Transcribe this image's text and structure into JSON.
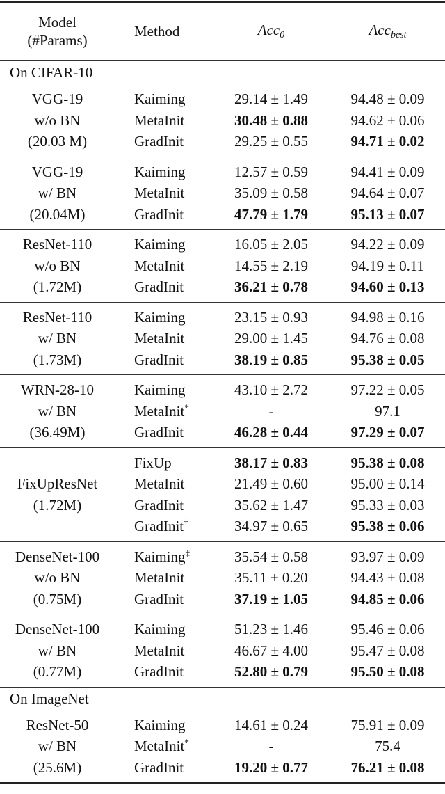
{
  "header": {
    "model_line1": "Model",
    "model_line2": "(#Params)",
    "method": "Method",
    "acc0_base": "Acc",
    "acc0_sub": "0",
    "accbest_base": "Acc",
    "accbest_sub": "best"
  },
  "sections": [
    {
      "title": "On CIFAR-10",
      "groups": [
        {
          "model": [
            "VGG-19",
            "w/o BN",
            "(20.03 M)"
          ],
          "rows": [
            {
              "method": "Kaiming",
              "sup": "",
              "acc0": "29.14 ± 1.49",
              "acc0_bold": false,
              "best": "94.48 ± 0.09",
              "best_bold": false
            },
            {
              "method": "MetaInit",
              "sup": "",
              "acc0": "30.48 ± 0.88",
              "acc0_bold": true,
              "best": "94.62 ± 0.06",
              "best_bold": false
            },
            {
              "method": "GradInit",
              "sup": "",
              "acc0": "29.25 ± 0.55",
              "acc0_bold": false,
              "best": "94.71 ± 0.02",
              "best_bold": true
            }
          ]
        },
        {
          "model": [
            "VGG-19",
            "w/ BN",
            "(20.04M)"
          ],
          "rows": [
            {
              "method": "Kaiming",
              "sup": "",
              "acc0": "12.57 ± 0.59",
              "acc0_bold": false,
              "best": "94.41 ± 0.09",
              "best_bold": false
            },
            {
              "method": "MetaInit",
              "sup": "",
              "acc0": "35.09 ± 0.58",
              "acc0_bold": false,
              "best": "94.64 ± 0.07",
              "best_bold": false
            },
            {
              "method": "GradInit",
              "sup": "",
              "acc0": "47.79 ± 1.79",
              "acc0_bold": true,
              "best": "95.13 ± 0.07",
              "best_bold": true
            }
          ]
        },
        {
          "model": [
            "ResNet-110",
            "w/o BN",
            "(1.72M)"
          ],
          "rows": [
            {
              "method": "Kaiming",
              "sup": "",
              "acc0": "16.05 ± 2.05",
              "acc0_bold": false,
              "best": "94.22 ± 0.09",
              "best_bold": false
            },
            {
              "method": "MetaInit",
              "sup": "",
              "acc0": "14.55 ± 2.19",
              "acc0_bold": false,
              "best": "94.19 ± 0.11",
              "best_bold": false
            },
            {
              "method": "GradInit",
              "sup": "",
              "acc0": "36.21 ± 0.78",
              "acc0_bold": true,
              "best": "94.60 ± 0.13",
              "best_bold": true
            }
          ]
        },
        {
          "model": [
            "ResNet-110",
            "w/ BN",
            "(1.73M)"
          ],
          "rows": [
            {
              "method": "Kaiming",
              "sup": "",
              "acc0": "23.15 ± 0.93",
              "acc0_bold": false,
              "best": "94.98 ± 0.16",
              "best_bold": false
            },
            {
              "method": "MetaInit",
              "sup": "",
              "acc0": "29.00 ± 1.45",
              "acc0_bold": false,
              "best": "94.76 ± 0.08",
              "best_bold": false
            },
            {
              "method": "GradInit",
              "sup": "",
              "acc0": "38.19 ± 0.85",
              "acc0_bold": true,
              "best": "95.38 ± 0.05",
              "best_bold": true
            }
          ]
        },
        {
          "model": [
            "WRN-28-10",
            "w/ BN",
            "(36.49M)"
          ],
          "rows": [
            {
              "method": "Kaiming",
              "sup": "",
              "acc0": "43.10 ± 2.72",
              "acc0_bold": false,
              "best": "97.22 ± 0.05",
              "best_bold": false
            },
            {
              "method": "MetaInit",
              "sup": "*",
              "acc0": "-",
              "acc0_bold": false,
              "best": "97.1",
              "best_bold": false
            },
            {
              "method": "GradInit",
              "sup": "",
              "acc0": "46.28 ± 0.44",
              "acc0_bold": true,
              "best": "97.29 ± 0.07",
              "best_bold": true
            }
          ]
        },
        {
          "model": [
            "FixUpResNet",
            "(1.72M)"
          ],
          "rows": [
            {
              "method": "FixUp",
              "sup": "",
              "acc0": "38.17 ± 0.83",
              "acc0_bold": true,
              "best": "95.38 ± 0.08",
              "best_bold": true
            },
            {
              "method": "MetaInit",
              "sup": "",
              "acc0": "21.49 ± 0.60",
              "acc0_bold": false,
              "best": "95.00 ± 0.14",
              "best_bold": false
            },
            {
              "method": "GradInit",
              "sup": "",
              "acc0": "35.62 ± 1.47",
              "acc0_bold": false,
              "best": "95.33 ± 0.03",
              "best_bold": false
            },
            {
              "method": "GradInit",
              "sup": "†",
              "acc0": "34.97 ± 0.65",
              "acc0_bold": false,
              "best": "95.38 ± 0.06",
              "best_bold": true
            }
          ]
        },
        {
          "model": [
            "DenseNet-100",
            "w/o BN",
            "(0.75M)"
          ],
          "rows": [
            {
              "method": "Kaiming",
              "sup": "‡",
              "acc0": "35.54 ± 0.58",
              "acc0_bold": false,
              "best": "93.97 ± 0.09",
              "best_bold": false
            },
            {
              "method": "MetaInit",
              "sup": "",
              "acc0": "35.11 ± 0.20",
              "acc0_bold": false,
              "best": "94.43 ± 0.08",
              "best_bold": false
            },
            {
              "method": "GradInit",
              "sup": "",
              "acc0": "37.19 ± 1.05",
              "acc0_bold": true,
              "best": "94.85 ± 0.06",
              "best_bold": true
            }
          ]
        },
        {
          "model": [
            "DenseNet-100",
            "w/ BN",
            "(0.77M)"
          ],
          "rows": [
            {
              "method": "Kaiming",
              "sup": "",
              "acc0": "51.23 ± 1.46",
              "acc0_bold": false,
              "best": "95.46 ± 0.06",
              "best_bold": false
            },
            {
              "method": "MetaInit",
              "sup": "",
              "acc0": "46.67 ± 4.00",
              "acc0_bold": false,
              "best": "95.47 ± 0.08",
              "best_bold": false
            },
            {
              "method": "GradInit",
              "sup": "",
              "acc0": "52.80 ± 0.79",
              "acc0_bold": true,
              "best": "95.50 ± 0.08",
              "best_bold": true
            }
          ]
        }
      ]
    },
    {
      "title": "On ImageNet",
      "groups": [
        {
          "model": [
            "ResNet-50",
            "w/ BN",
            "(25.6M)"
          ],
          "rows": [
            {
              "method": "Kaiming",
              "sup": "",
              "acc0": "14.61 ± 0.24",
              "acc0_bold": false,
              "best": "75.91 ± 0.09",
              "best_bold": false
            },
            {
              "method": "MetaInit",
              "sup": "*",
              "acc0": "-",
              "acc0_bold": false,
              "best": "75.4",
              "best_bold": false
            },
            {
              "method": "GradInit",
              "sup": "",
              "acc0": "19.20 ± 0.77",
              "acc0_bold": true,
              "best": "76.21 ± 0.08",
              "best_bold": true
            }
          ]
        }
      ]
    }
  ]
}
